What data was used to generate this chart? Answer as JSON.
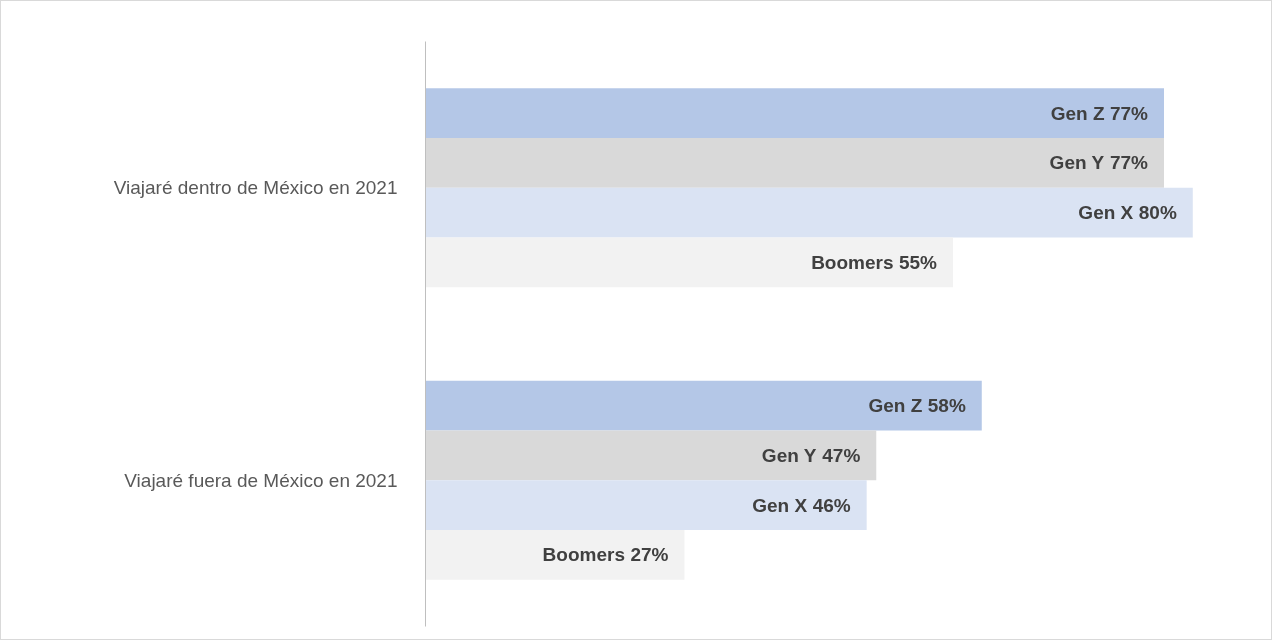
{
  "chart_data": {
    "type": "bar",
    "orientation": "horizontal",
    "categories": [
      "Viajaré dentro de México en 2021",
      "Viajaré fuera de México en 2021"
    ],
    "xlim": [
      0,
      88
    ],
    "tick_labels": "y",
    "grid": false,
    "series": [
      {
        "name": "Gen Z",
        "color": "#b4c7e7",
        "values": [
          77,
          58
        ],
        "value_labels": [
          "77%",
          "58%"
        ]
      },
      {
        "name": "Gen Y",
        "color": "#d9d9d9",
        "values": [
          77,
          47
        ],
        "value_labels": [
          "77%",
          "47%"
        ]
      },
      {
        "name": "Gen X",
        "color": "#dae3f3",
        "values": [
          80,
          46
        ],
        "value_labels": [
          "80%",
          "46%"
        ]
      },
      {
        "name": "Boomers",
        "color": "#f2f2f2",
        "values": [
          55,
          27
        ],
        "value_labels": [
          "55%",
          "27%"
        ]
      }
    ]
  }
}
